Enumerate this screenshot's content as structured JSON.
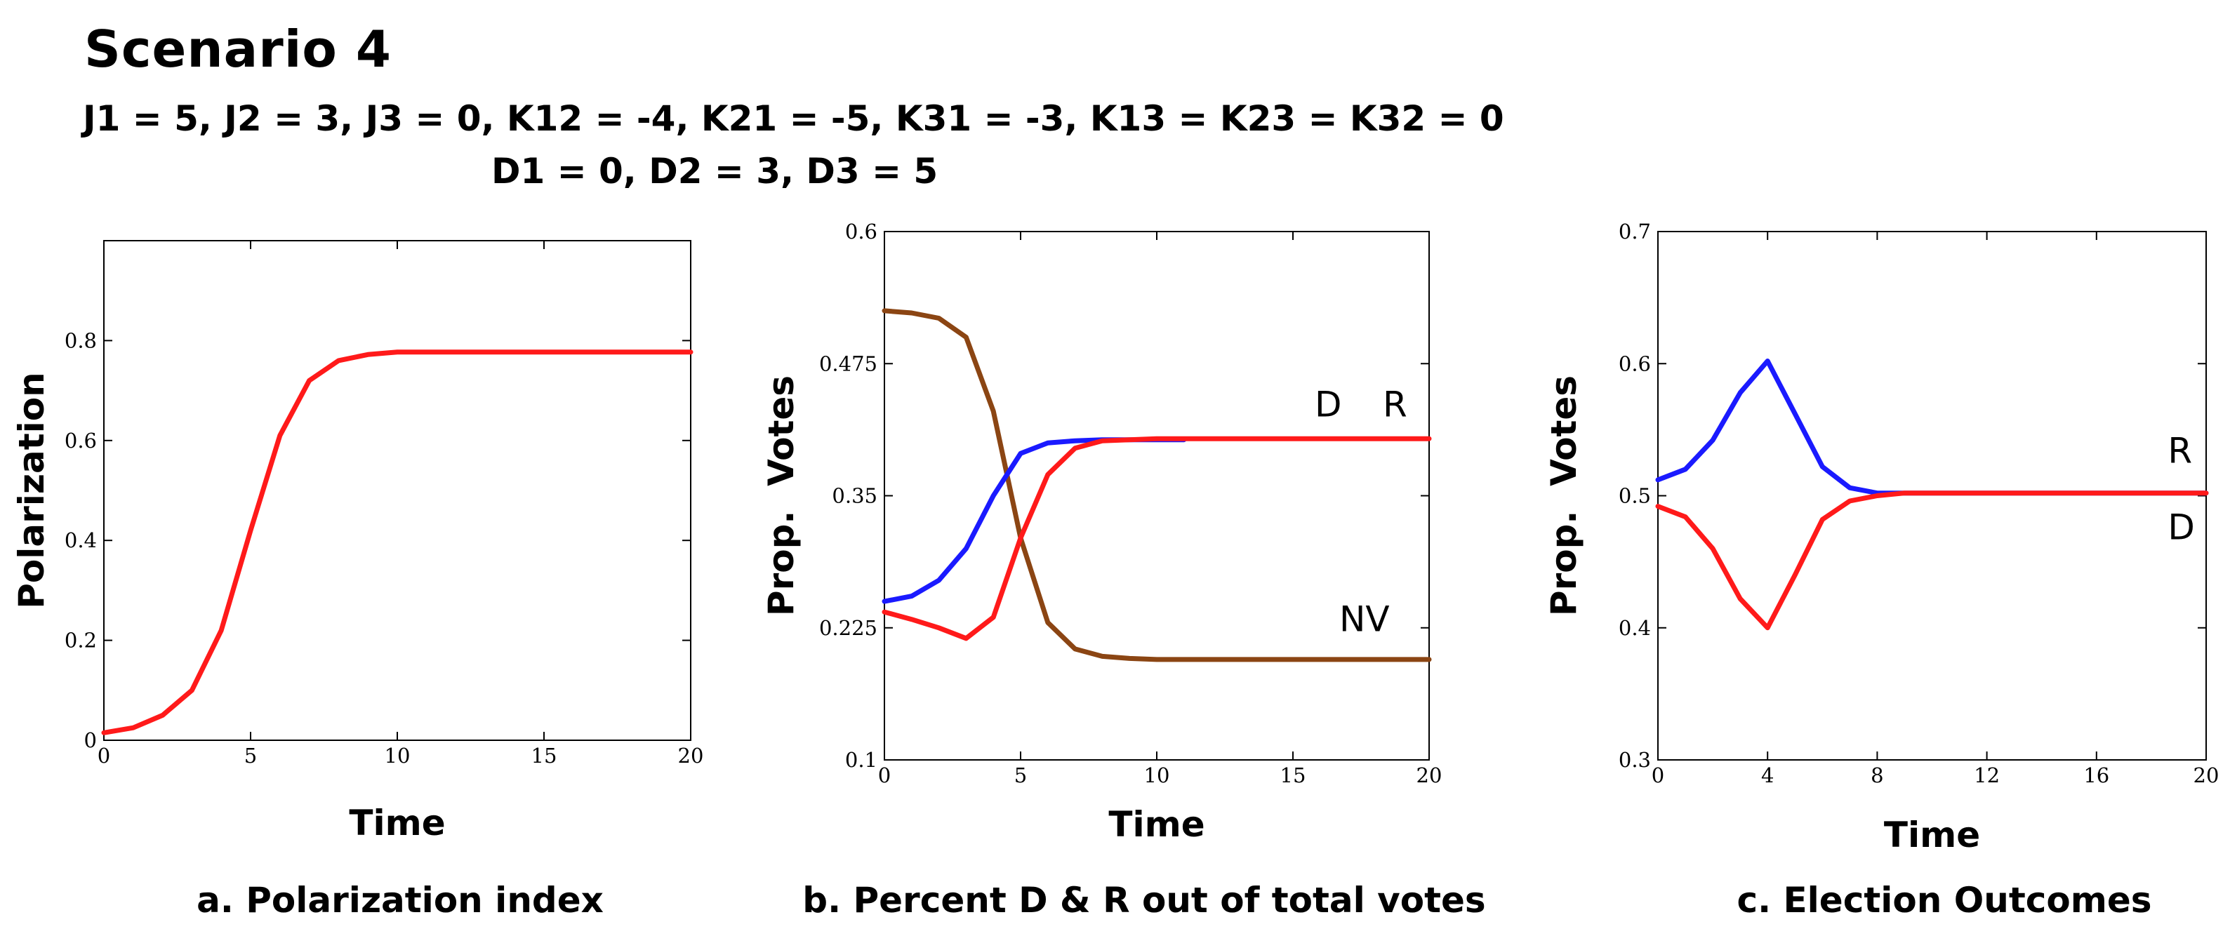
{
  "header": {
    "title": "Scenario 4",
    "params_line1": "J1 = 5, J2 = 3, J3 = 0, K12 = -4, K21 = -5, K31 = -3, K13 = K23 = K32 = 0",
    "params_line2": "D1 = 0, D2 = 3, D3 = 5"
  },
  "colors": {
    "red": "#ff1a1a",
    "blue": "#1a1aff",
    "brown": "#8b4513"
  },
  "chart_data": [
    {
      "type": "line",
      "title": "a. Polarization index",
      "xlabel": "Time",
      "ylabel": "Polarization",
      "xlim": [
        0,
        20
      ],
      "ylim": [
        0,
        1.0
      ],
      "xticks": [
        "0",
        "5",
        "10",
        "15",
        "20"
      ],
      "yticks": [
        "0",
        "0.2",
        "0.4",
        "0.6",
        "0.8"
      ],
      "series": [
        {
          "name": "Polarization",
          "color": "#ff1a1a",
          "x": [
            0,
            1,
            2,
            3,
            4,
            5,
            6,
            7,
            8,
            9,
            10,
            12,
            15,
            20
          ],
          "y": [
            0.015,
            0.025,
            0.05,
            0.1,
            0.22,
            0.42,
            0.61,
            0.72,
            0.76,
            0.772,
            0.777,
            0.777,
            0.777,
            0.777
          ]
        }
      ],
      "annotations": []
    },
    {
      "type": "line",
      "title": "b. Percent D & R out of total votes",
      "xlabel": "Time",
      "ylabel": "Prop.  Votes",
      "xlim": [
        0,
        20
      ],
      "ylim": [
        0.1,
        0.6
      ],
      "xticks": [
        "0",
        "5",
        "10",
        "15",
        "20"
      ],
      "yticks": [
        "0.1",
        "0.225",
        "0.35",
        "0.475",
        "0.6"
      ],
      "series": [
        {
          "name": "NV",
          "color": "#8b4513",
          "x": [
            0,
            1,
            2,
            3,
            4,
            5,
            6,
            7,
            8,
            9,
            10,
            15,
            20
          ],
          "y": [
            0.525,
            0.523,
            0.518,
            0.5,
            0.43,
            0.31,
            0.23,
            0.205,
            0.198,
            0.196,
            0.195,
            0.195,
            0.195
          ]
        },
        {
          "name": "D",
          "color": "#1a1aff",
          "x": [
            0,
            1,
            2,
            3,
            4,
            5,
            6,
            7,
            8,
            9,
            10,
            11
          ],
          "y": [
            0.25,
            0.255,
            0.27,
            0.3,
            0.35,
            0.39,
            0.4,
            0.402,
            0.403,
            0.403,
            0.403,
            0.403
          ]
        },
        {
          "name": "R",
          "color": "#ff1a1a",
          "x": [
            0,
            1,
            2,
            3,
            4,
            5,
            6,
            7,
            8,
            9,
            10,
            15,
            20
          ],
          "y": [
            0.24,
            0.233,
            0.225,
            0.215,
            0.235,
            0.31,
            0.37,
            0.395,
            0.402,
            0.403,
            0.404,
            0.404,
            0.404
          ]
        }
      ],
      "annotations": [
        {
          "text": "D",
          "x": 15.8,
          "y": 0.425
        },
        {
          "text": "R",
          "x": 18.3,
          "y": 0.425
        },
        {
          "text": "NV",
          "x": 16.7,
          "y": 0.222
        }
      ]
    },
    {
      "type": "line",
      "title": "c. Election Outcomes",
      "xlabel": "Time",
      "ylabel": "Prop.  Votes",
      "xlim": [
        0,
        20
      ],
      "ylim": [
        0.3,
        0.7
      ],
      "xticks": [
        "0",
        "4",
        "8",
        "12",
        "16",
        "20"
      ],
      "yticks": [
        "0.3",
        "0.4",
        "0.5",
        "0.6",
        "0.7"
      ],
      "series": [
        {
          "name": "D",
          "color": "#1a1aff",
          "x": [
            0,
            1,
            2,
            3,
            4,
            5,
            6,
            7,
            8,
            9,
            10,
            12,
            16,
            20
          ],
          "y": [
            0.512,
            0.52,
            0.542,
            0.578,
            0.602,
            0.562,
            0.522,
            0.506,
            0.502,
            0.502,
            0.502,
            0.502,
            0.502,
            0.502
          ]
        },
        {
          "name": "R",
          "color": "#ff1a1a",
          "x": [
            0,
            1,
            2,
            3,
            4,
            5,
            6,
            7,
            8,
            9,
            10,
            12,
            16,
            20
          ],
          "y": [
            0.492,
            0.484,
            0.46,
            0.422,
            0.4,
            0.44,
            0.482,
            0.496,
            0.5,
            0.502,
            0.502,
            0.502,
            0.502,
            0.502
          ]
        }
      ],
      "annotations": [
        {
          "text": "R",
          "x": 18.6,
          "y": 0.525
        },
        {
          "text": "D",
          "x": 18.6,
          "y": 0.467
        }
      ]
    }
  ]
}
